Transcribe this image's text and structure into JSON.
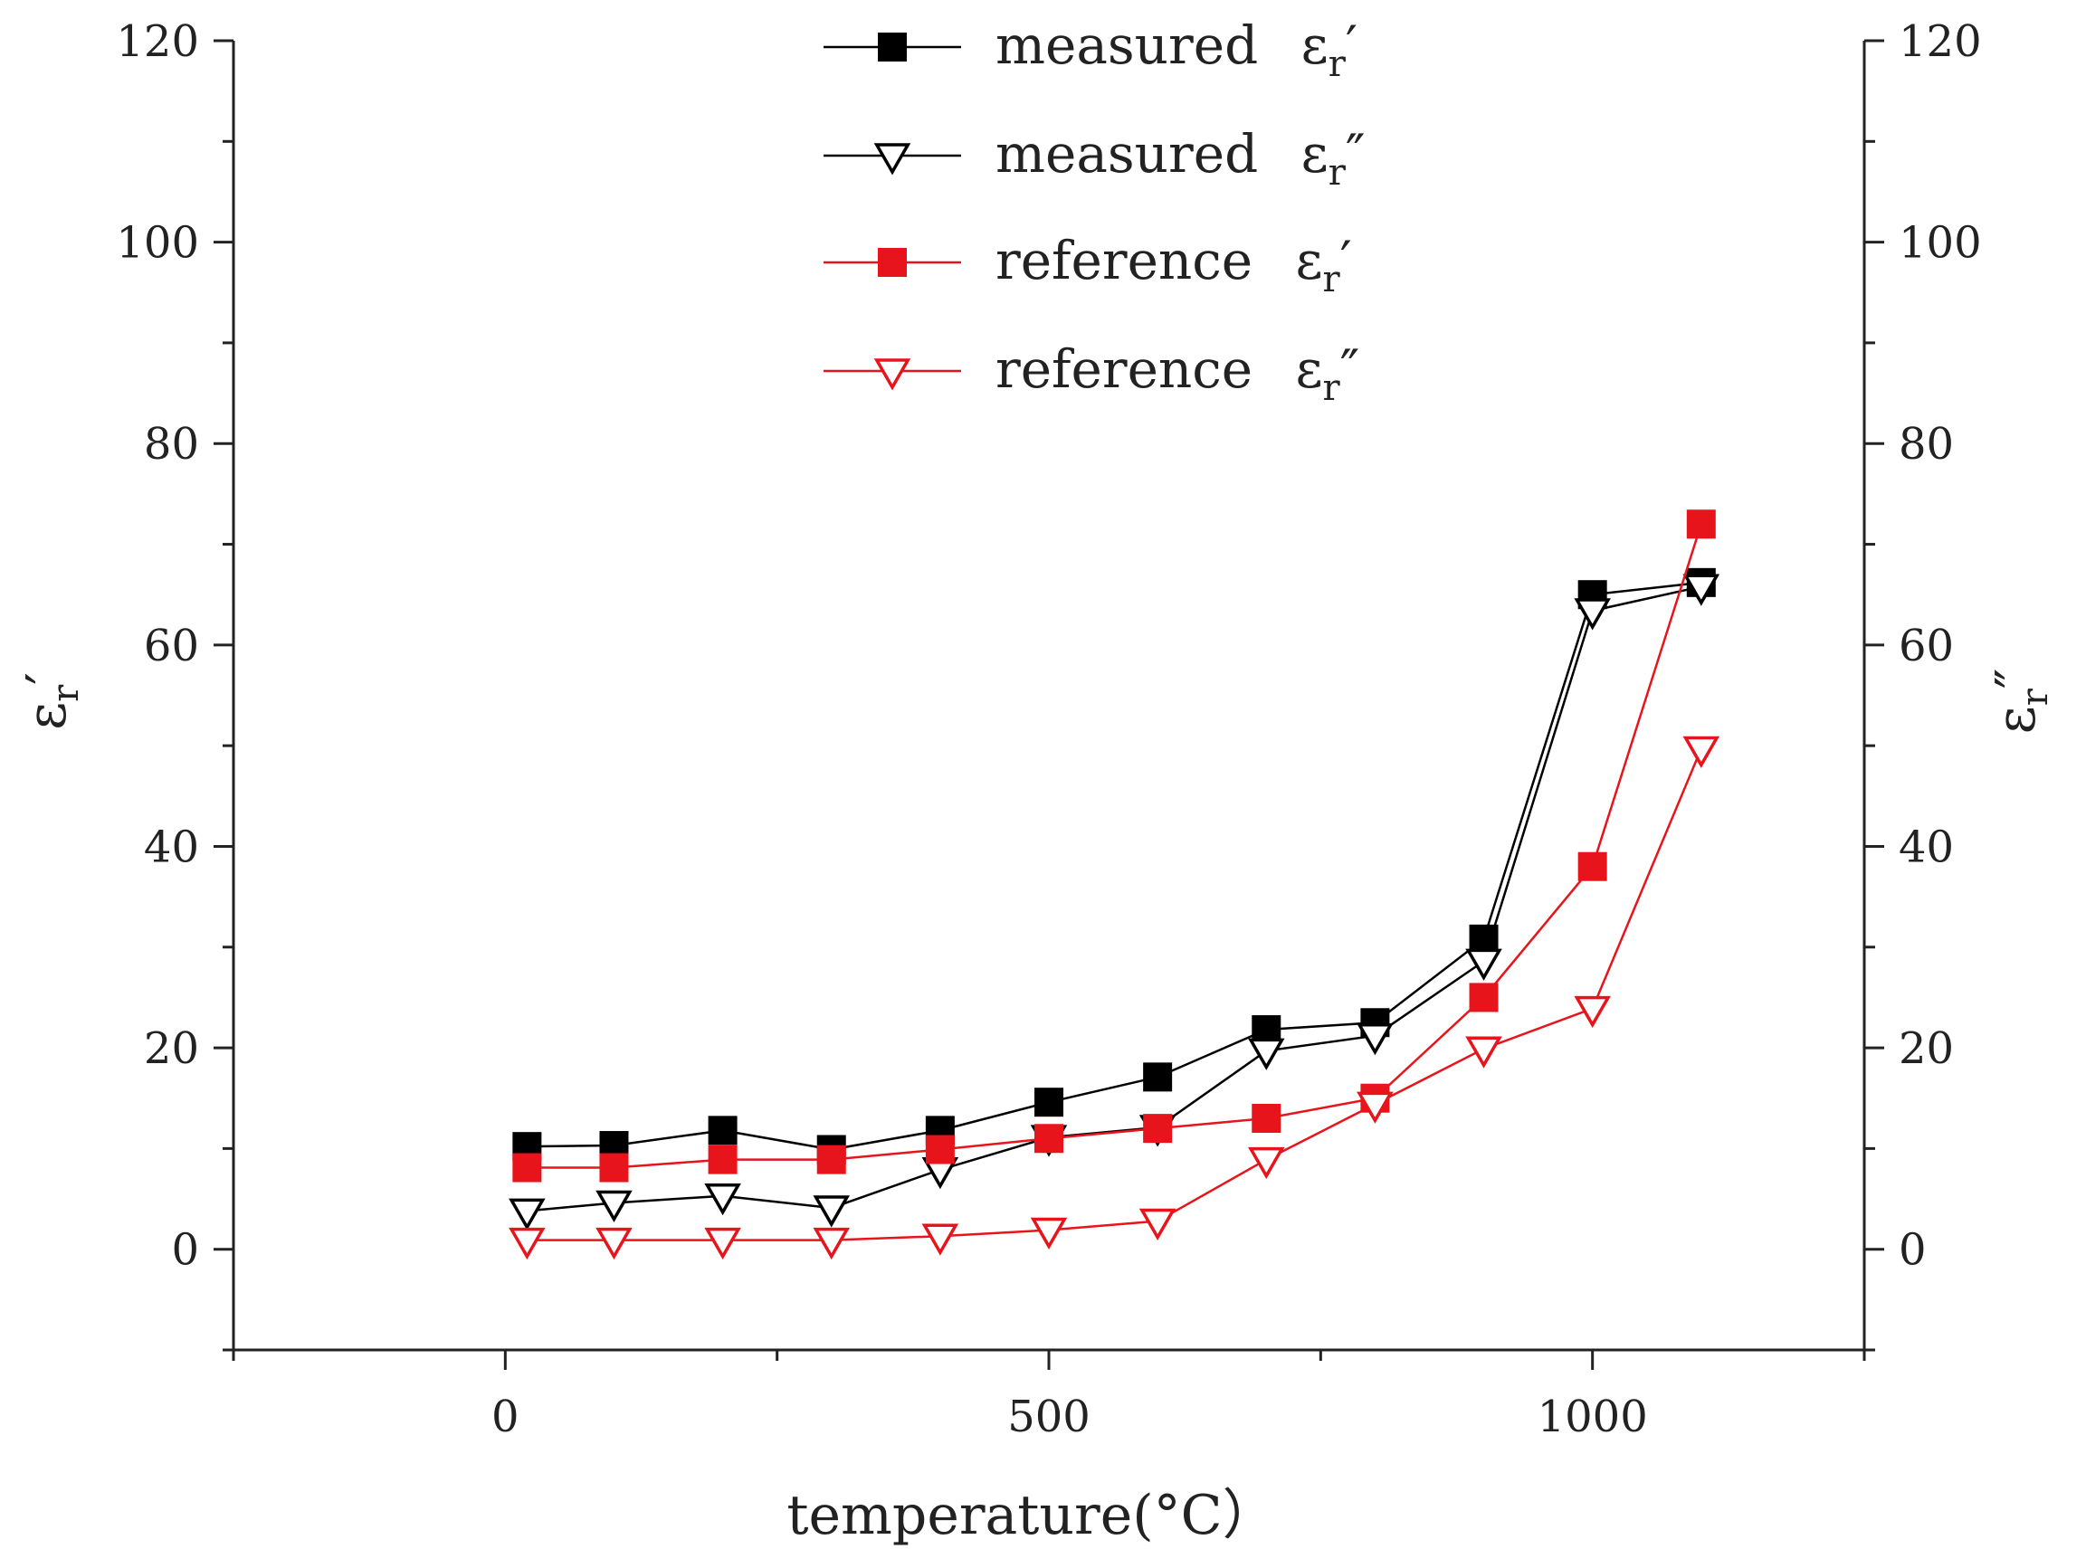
{
  "chart_data": {
    "type": "line",
    "xlabel": "temperature(°C）",
    "ylabel_left": {
      "base": "ε",
      "sub": "r",
      "mark": "′"
    },
    "ylabel_right": {
      "base": "ε",
      "sub": "r",
      "mark": "″"
    },
    "xlim": [
      -250,
      1250
    ],
    "ylim": [
      -10,
      120
    ],
    "x_ticks": [
      0,
      500,
      1000
    ],
    "x_tick_labels": [
      "0",
      "500",
      "1000"
    ],
    "y_ticks": [
      0,
      20,
      40,
      60,
      80,
      100,
      120
    ],
    "y_tick_labels": [
      "0",
      "20",
      "40",
      "60",
      "80",
      "100",
      "120"
    ],
    "legend_position": "top-center",
    "series": [
      {
        "name": "measured",
        "mark": "′",
        "color": "#000000",
        "marker": "square-filled",
        "x": [
          20,
          100,
          200,
          300,
          400,
          500,
          600,
          700,
          800,
          900,
          1000,
          1100
        ],
        "values": [
          10.2,
          10.3,
          11.8,
          9.9,
          11.8,
          14.6,
          17.1,
          21.8,
          22.5,
          30.8,
          65.0,
          66.2
        ]
      },
      {
        "name": "measured",
        "mark": "″",
        "color": "#000000",
        "marker": "triangle-down-open",
        "x": [
          20,
          100,
          200,
          300,
          400,
          500,
          600,
          700,
          800,
          900,
          1000,
          1100
        ],
        "values": [
          3.8,
          4.6,
          5.3,
          4.1,
          7.9,
          11.1,
          12.1,
          19.7,
          21.2,
          28.6,
          63.4,
          65.8
        ]
      },
      {
        "name": "reference",
        "mark": "′",
        "color": "#e8141b",
        "marker": "square-filled",
        "x": [
          20,
          100,
          200,
          300,
          400,
          500,
          600,
          700,
          800,
          900,
          1000,
          1100
        ],
        "values": [
          8.1,
          8.1,
          8.9,
          8.9,
          9.9,
          11.0,
          12.0,
          13.0,
          15.0,
          25.0,
          38.0,
          72.0
        ]
      },
      {
        "name": "reference",
        "mark": "″",
        "color": "#e8141b",
        "marker": "triangle-down-open",
        "x": [
          20,
          100,
          200,
          300,
          400,
          500,
          600,
          700,
          800,
          900,
          1000,
          1100
        ],
        "values": [
          0.9,
          0.9,
          0.9,
          0.9,
          1.3,
          1.9,
          2.8,
          8.9,
          14.4,
          19.9,
          23.9,
          49.7
        ]
      }
    ]
  }
}
